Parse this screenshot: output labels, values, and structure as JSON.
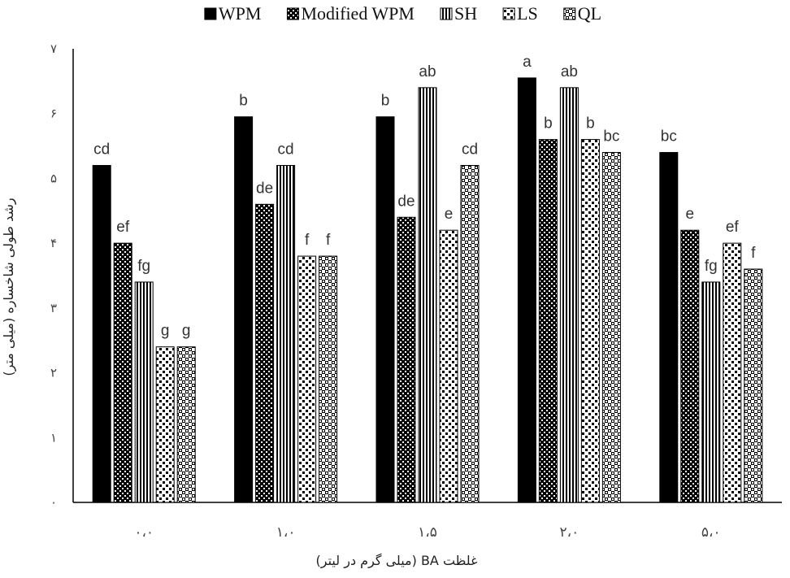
{
  "chart_data": {
    "type": "bar",
    "title": "",
    "xlabel": "غلظت BA (میلی گرم در لیتر)",
    "ylabel": "رشد طولی شاخساره (میلی متر)",
    "ylim": [
      0,
      7
    ],
    "y_ticks": [
      {
        "value": 0,
        "label": "۰"
      },
      {
        "value": 1,
        "label": "۱"
      },
      {
        "value": 2,
        "label": "۲"
      },
      {
        "value": 3,
        "label": "۳"
      },
      {
        "value": 4,
        "label": "۴"
      },
      {
        "value": 5,
        "label": "۵"
      },
      {
        "value": 6,
        "label": "۶"
      },
      {
        "value": 7,
        "label": "۷"
      }
    ],
    "categories": [
      "۰،۰",
      "۱،۰",
      "۱،۵",
      "۲،۰",
      "۵،۰"
    ],
    "grid": false,
    "legend_position": "top-center",
    "series": [
      {
        "name": "WPM",
        "pattern": "solid",
        "values": [
          5.2,
          5.95,
          5.95,
          6.55,
          5.4
        ],
        "labels": [
          "cd",
          "b",
          "b",
          "a",
          "bc"
        ]
      },
      {
        "name": "Modified WPM",
        "pattern": "dense-checker",
        "values": [
          4.0,
          4.6,
          4.4,
          5.6,
          4.2
        ],
        "labels": [
          "ef",
          "de",
          "de",
          "b",
          "e"
        ]
      },
      {
        "name": "SH",
        "pattern": "vertical-stripes",
        "values": [
          3.4,
          5.2,
          6.4,
          6.4,
          3.4
        ],
        "labels": [
          "fg",
          "cd",
          "ab",
          "ab",
          "fg"
        ]
      },
      {
        "name": "LS",
        "pattern": "sparse-squares",
        "values": [
          2.4,
          3.8,
          4.2,
          5.6,
          4.0
        ],
        "labels": [
          "g",
          "f",
          "e",
          "b",
          "ef"
        ]
      },
      {
        "name": "QL",
        "pattern": "checker",
        "values": [
          2.4,
          3.8,
          5.2,
          5.4,
          3.6
        ],
        "labels": [
          "g",
          "f",
          "cd",
          "bc",
          "f"
        ]
      }
    ],
    "colors": {
      "bar_fill": "#000000",
      "bar_background": "#ffffff",
      "axis": "#000000",
      "label_text": "#333333"
    }
  }
}
